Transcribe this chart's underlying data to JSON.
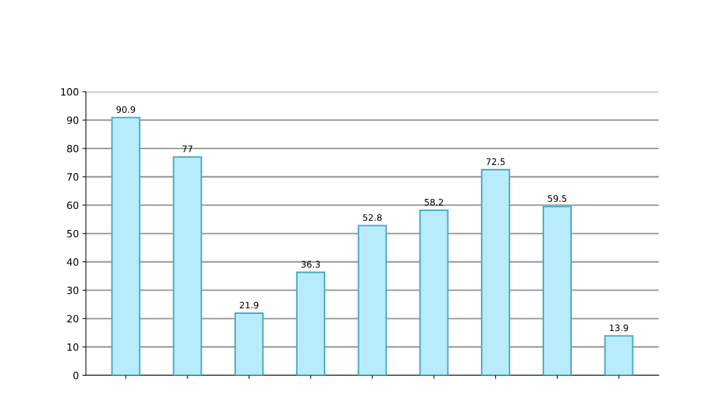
{
  "chart_data": {
    "type": "bar",
    "categories": [
      null,
      null,
      null,
      null,
      null,
      null,
      null,
      null,
      null
    ],
    "values": [
      90.9,
      77,
      21.9,
      36.3,
      52.8,
      58.2,
      72.5,
      59.5,
      13.9
    ],
    "color": "#b8ecfa",
    "ylim": [
      0,
      100
    ],
    "yticks": [
      0,
      10,
      20,
      30,
      40,
      50,
      60,
      70,
      80,
      90,
      100
    ],
    "grid": "y",
    "data_labels": true
  }
}
